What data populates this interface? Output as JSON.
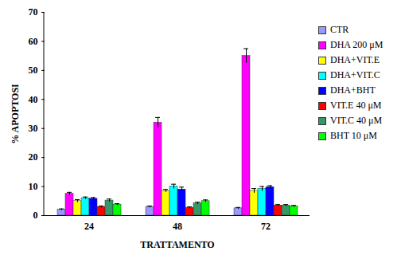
{
  "chart_data": {
    "type": "bar",
    "x_label": "TRATTAMENTO",
    "y_label": "% APOPTOSI",
    "categories": [
      24,
      48,
      72
    ],
    "ylim": [
      0,
      70
    ],
    "yticks": [
      0,
      10,
      20,
      30,
      40,
      50,
      60,
      70
    ],
    "grid": false,
    "legend": "right",
    "series": [
      {
        "name": "CTR",
        "color": "#9999ff",
        "values": [
          2,
          3,
          2.5
        ],
        "errors": [
          0.3,
          0.3,
          0.3
        ]
      },
      {
        "name": "DHA 200 μM",
        "color": "#ff00ff",
        "values": [
          7.5,
          32,
          55
        ],
        "errors": [
          0.5,
          1.8,
          2.5
        ]
      },
      {
        "name": "DHA+VIT.E",
        "color": "#ffff00",
        "values": [
          5,
          8.5,
          8.5
        ],
        "errors": [
          0.5,
          0.5,
          0.8
        ]
      },
      {
        "name": "DHA+VIT.C",
        "color": "#00ffff",
        "values": [
          6,
          10,
          9.2
        ],
        "errors": [
          0.4,
          0.8,
          0.8
        ]
      },
      {
        "name": "DHA+BHT",
        "color": "#0000ff",
        "values": [
          5.8,
          9,
          9.8
        ],
        "errors": [
          0.4,
          0.8,
          0.5
        ]
      },
      {
        "name": "VIT.E 40 μM",
        "color": "#ff0000",
        "values": [
          3,
          2.7,
          3.5
        ],
        "errors": [
          0.3,
          0.3,
          0.3
        ]
      },
      {
        "name": "VIT.C 40 μM",
        "color": "#339966",
        "values": [
          5.2,
          4.2,
          3.5
        ],
        "errors": [
          0.5,
          0.4,
          0.3
        ]
      },
      {
        "name": "BHT 10 μM",
        "color": "#00ff00",
        "values": [
          3.8,
          5,
          3.2
        ],
        "errors": [
          0.3,
          0.4,
          0.3
        ]
      }
    ]
  }
}
